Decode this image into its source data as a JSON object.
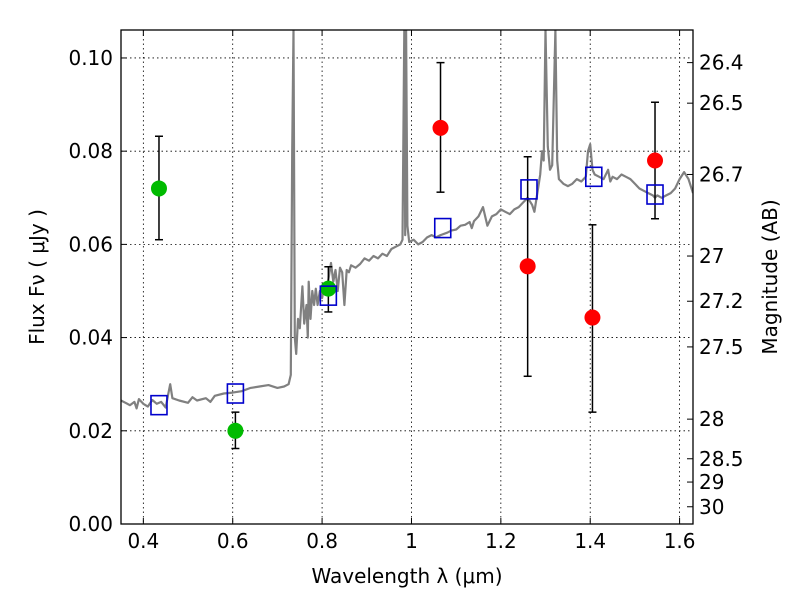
{
  "chart_data": {
    "type": "scatter",
    "xlabel": "Wavelength  λ (μm)",
    "ylabel": "Flux  Fν  ( μJy )",
    "y2label": "Magnitude (AB)",
    "xlim": [
      0.35,
      1.63
    ],
    "ylim": [
      0.0,
      0.106
    ],
    "grid": true,
    "x_ticks": [
      0.4,
      0.6,
      0.8,
      1.0,
      1.2,
      1.4,
      1.6
    ],
    "x_tick_labels": [
      "0.4",
      "0.6",
      "0.8",
      "1",
      "1.2",
      "1.4",
      "1.6"
    ],
    "y_ticks": [
      0.0,
      0.02,
      0.04,
      0.06,
      0.08,
      0.1
    ],
    "y_tick_labels": [
      "0.00",
      "0.02",
      "0.04",
      "0.06",
      "0.08",
      "0.10"
    ],
    "y2_ticks": [
      {
        "flux": 0.099,
        "label": "26.4"
      },
      {
        "flux": 0.0903,
        "label": "26.5"
      },
      {
        "flux": 0.075,
        "label": "26.7"
      },
      {
        "flux": 0.0575,
        "label": "27"
      },
      {
        "flux": 0.0478,
        "label": "27.2"
      },
      {
        "flux": 0.038,
        "label": "27.5"
      },
      {
        "flux": 0.0225,
        "label": "28"
      },
      {
        "flux": 0.014,
        "label": "28.5"
      },
      {
        "flux": 0.009,
        "label": "29"
      },
      {
        "flux": 0.0037,
        "label": "30"
      }
    ],
    "series": [
      {
        "kind": "points_with_errors",
        "color": "#00bb00",
        "points": [
          {
            "x": 0.435,
            "y": 0.072,
            "yerr_low": 0.061,
            "yerr_high": 0.0832
          },
          {
            "x": 0.606,
            "y": 0.02,
            "yerr_low": 0.0162,
            "yerr_high": 0.024
          },
          {
            "x": 0.814,
            "y": 0.0505,
            "yerr_low": 0.0455,
            "yerr_high": 0.0552
          }
        ]
      },
      {
        "kind": "points_with_errors",
        "color": "#ff0000",
        "points": [
          {
            "x": 1.065,
            "y": 0.085,
            "yerr_low": 0.0712,
            "yerr_high": 0.099
          },
          {
            "x": 1.26,
            "y": 0.0553,
            "yerr_low": 0.0317,
            "yerr_high": 0.0788
          },
          {
            "x": 1.405,
            "y": 0.0443,
            "yerr_low": 0.024,
            "yerr_high": 0.0642
          },
          {
            "x": 1.545,
            "y": 0.078,
            "yerr_low": 0.0655,
            "yerr_high": 0.0905
          }
        ]
      },
      {
        "kind": "open_squares",
        "color": "#0000cc",
        "points": [
          {
            "x": 0.435,
            "y": 0.0255
          },
          {
            "x": 0.606,
            "y": 0.028
          },
          {
            "x": 0.814,
            "y": 0.049
          },
          {
            "x": 1.07,
            "y": 0.0635
          },
          {
            "x": 1.263,
            "y": 0.0718
          },
          {
            "x": 1.408,
            "y": 0.0745
          },
          {
            "x": 1.545,
            "y": 0.0707
          }
        ]
      },
      {
        "kind": "spectrum_line",
        "color": "#808080",
        "points": [
          [
            0.35,
            0.0265
          ],
          [
            0.36,
            0.026
          ],
          [
            0.37,
            0.0255
          ],
          [
            0.38,
            0.0262
          ],
          [
            0.385,
            0.0248
          ],
          [
            0.39,
            0.0268
          ],
          [
            0.4,
            0.0258
          ],
          [
            0.41,
            0.0252
          ],
          [
            0.42,
            0.0266
          ],
          [
            0.43,
            0.0258
          ],
          [
            0.44,
            0.0262
          ],
          [
            0.45,
            0.025
          ],
          [
            0.455,
            0.0275
          ],
          [
            0.46,
            0.03
          ],
          [
            0.465,
            0.027
          ],
          [
            0.48,
            0.0265
          ],
          [
            0.5,
            0.026
          ],
          [
            0.51,
            0.0272
          ],
          [
            0.52,
            0.0265
          ],
          [
            0.54,
            0.027
          ],
          [
            0.55,
            0.0262
          ],
          [
            0.56,
            0.0275
          ],
          [
            0.58,
            0.028
          ],
          [
            0.6,
            0.0282
          ],
          [
            0.62,
            0.0285
          ],
          [
            0.64,
            0.0292
          ],
          [
            0.66,
            0.0295
          ],
          [
            0.68,
            0.0298
          ],
          [
            0.7,
            0.0292
          ],
          [
            0.715,
            0.0295
          ],
          [
            0.725,
            0.03
          ],
          [
            0.73,
            0.032
          ],
          [
            0.733,
            0.08
          ],
          [
            0.736,
            0.106
          ],
          [
            0.739,
            0.04
          ],
          [
            0.742,
            0.0365
          ],
          [
            0.746,
            0.044
          ],
          [
            0.75,
            0.042
          ],
          [
            0.756,
            0.051
          ],
          [
            0.76,
            0.043
          ],
          [
            0.765,
            0.047
          ],
          [
            0.768,
            0.04
          ],
          [
            0.77,
            0.052
          ],
          [
            0.774,
            0.044
          ],
          [
            0.778,
            0.05
          ],
          [
            0.782,
            0.047
          ],
          [
            0.786,
            0.0505
          ],
          [
            0.79,
            0.047
          ],
          [
            0.795,
            0.05
          ],
          [
            0.8,
            0.0485
          ],
          [
            0.805,
            0.051
          ],
          [
            0.81,
            0.05
          ],
          [
            0.815,
            0.053
          ],
          [
            0.82,
            0.056
          ],
          [
            0.825,
            0.052
          ],
          [
            0.83,
            0.0545
          ],
          [
            0.835,
            0.05
          ],
          [
            0.84,
            0.055
          ],
          [
            0.845,
            0.054
          ],
          [
            0.85,
            0.047
          ],
          [
            0.855,
            0.0545
          ],
          [
            0.86,
            0.054
          ],
          [
            0.865,
            0.0555
          ],
          [
            0.875,
            0.055
          ],
          [
            0.885,
            0.0558
          ],
          [
            0.895,
            0.057
          ],
          [
            0.905,
            0.0565
          ],
          [
            0.915,
            0.0575
          ],
          [
            0.925,
            0.057
          ],
          [
            0.935,
            0.058
          ],
          [
            0.945,
            0.0575
          ],
          [
            0.955,
            0.059
          ],
          [
            0.965,
            0.0595
          ],
          [
            0.975,
            0.06
          ],
          [
            0.98,
            0.061
          ],
          [
            0.984,
            0.106
          ],
          [
            0.986,
            0.062
          ],
          [
            0.988,
            0.106
          ],
          [
            0.991,
            0.064
          ],
          [
            0.995,
            0.0605
          ],
          [
            1.005,
            0.061
          ],
          [
            1.015,
            0.06
          ],
          [
            1.025,
            0.0605
          ],
          [
            1.035,
            0.0615
          ],
          [
            1.045,
            0.062
          ],
          [
            1.055,
            0.0615
          ],
          [
            1.065,
            0.062
          ],
          [
            1.08,
            0.0625
          ],
          [
            1.09,
            0.063
          ],
          [
            1.1,
            0.0632
          ],
          [
            1.11,
            0.064
          ],
          [
            1.12,
            0.0642
          ],
          [
            1.13,
            0.0648
          ],
          [
            1.135,
            0.0635
          ],
          [
            1.14,
            0.065
          ],
          [
            1.15,
            0.066
          ],
          [
            1.16,
            0.068
          ],
          [
            1.17,
            0.064
          ],
          [
            1.18,
            0.066
          ],
          [
            1.19,
            0.0665
          ],
          [
            1.2,
            0.0675
          ],
          [
            1.21,
            0.067
          ],
          [
            1.22,
            0.0665
          ],
          [
            1.23,
            0.0675
          ],
          [
            1.24,
            0.068
          ],
          [
            1.25,
            0.069
          ],
          [
            1.26,
            0.07
          ],
          [
            1.27,
            0.0685
          ],
          [
            1.275,
            0.067
          ],
          [
            1.28,
            0.07
          ],
          [
            1.285,
            0.073
          ],
          [
            1.288,
            0.075
          ],
          [
            1.292,
            0.08
          ],
          [
            1.296,
            0.078
          ],
          [
            1.3,
            0.106
          ],
          [
            1.305,
            0.081
          ],
          [
            1.31,
            0.076
          ],
          [
            1.315,
            0.077
          ],
          [
            1.322,
            0.106
          ],
          [
            1.326,
            0.078
          ],
          [
            1.33,
            0.074
          ],
          [
            1.34,
            0.073
          ],
          [
            1.35,
            0.0725
          ],
          [
            1.36,
            0.073
          ],
          [
            1.37,
            0.074
          ],
          [
            1.38,
            0.0735
          ],
          [
            1.39,
            0.0745
          ],
          [
            1.395,
            0.08
          ],
          [
            1.4,
            0.0815
          ],
          [
            1.405,
            0.076
          ],
          [
            1.41,
            0.075
          ],
          [
            1.42,
            0.0745
          ],
          [
            1.43,
            0.074
          ],
          [
            1.44,
            0.076
          ],
          [
            1.445,
            0.0735
          ],
          [
            1.45,
            0.0745
          ],
          [
            1.46,
            0.074
          ],
          [
            1.47,
            0.075
          ],
          [
            1.48,
            0.0745
          ],
          [
            1.49,
            0.074
          ],
          [
            1.5,
            0.073
          ],
          [
            1.51,
            0.072
          ],
          [
            1.52,
            0.0715
          ],
          [
            1.53,
            0.071
          ],
          [
            1.54,
            0.0705
          ],
          [
            1.545,
            0.07
          ],
          [
            1.55,
            0.0705
          ],
          [
            1.56,
            0.07
          ],
          [
            1.57,
            0.0705
          ],
          [
            1.58,
            0.071
          ],
          [
            1.59,
            0.072
          ],
          [
            1.6,
            0.074
          ],
          [
            1.61,
            0.0755
          ],
          [
            1.62,
            0.074
          ],
          [
            1.63,
            0.071
          ]
        ]
      }
    ]
  }
}
